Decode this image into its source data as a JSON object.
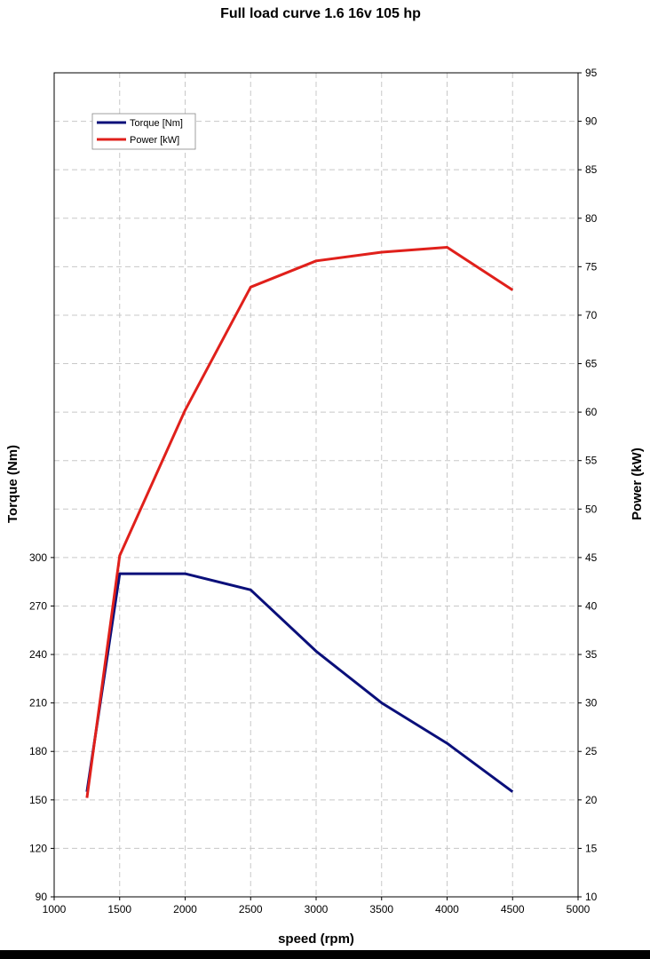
{
  "chart_data": {
    "type": "line",
    "title": "Full load curve 1.6 16v 105 hp",
    "xlabel": "speed (rpm)",
    "ylabel_left": "Torque (Nm)",
    "ylabel_right": "Power (kW)",
    "xlim": [
      1000,
      5000
    ],
    "x_ticks": [
      1000,
      1500,
      2000,
      2500,
      3000,
      3500,
      4000,
      4500,
      5000
    ],
    "ylim_left": [
      90,
      600
    ],
    "y_left_ticks": [
      90,
      120,
      150,
      180,
      210,
      240,
      270,
      300
    ],
    "ylim_right": [
      10,
      95
    ],
    "y_right_ticks": [
      10,
      15,
      20,
      25,
      30,
      35,
      40,
      45,
      50,
      55,
      60,
      65,
      70,
      75,
      80,
      85,
      90,
      95
    ],
    "grid": true,
    "legend_position": "top-left",
    "series": [
      {
        "name": "Torque [Nm]",
        "axis": "left",
        "color": "#0a0f7a",
        "x": [
          1250,
          1500,
          2000,
          2500,
          3000,
          3500,
          4000,
          4500
        ],
        "values": [
          155,
          290,
          290,
          280,
          242,
          210,
          185,
          155
        ]
      },
      {
        "name": "Power [kW]",
        "axis": "right",
        "color": "#e0201b",
        "x": [
          1250,
          1500,
          2000,
          2500,
          3000,
          3500,
          4000,
          4500
        ],
        "values": [
          20.2,
          45.2,
          60.2,
          72.9,
          75.6,
          76.5,
          77.0,
          72.6
        ]
      }
    ]
  }
}
